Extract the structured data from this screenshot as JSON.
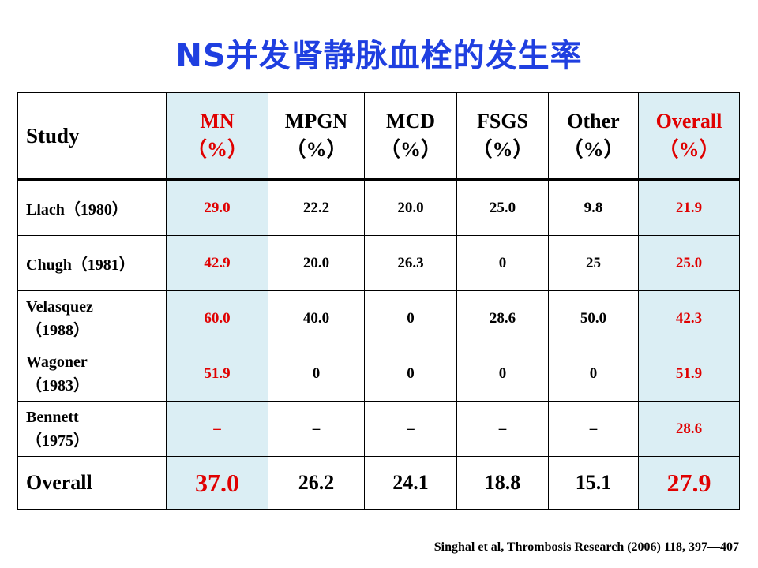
{
  "title": "NS并发肾静脉血栓的发生率",
  "table": {
    "header": {
      "study": "Study",
      "columns": [
        {
          "name": "MN",
          "unit": "（%）"
        },
        {
          "name": "MPGN",
          "unit": "（%）"
        },
        {
          "name": "MCD",
          "unit": "（%）"
        },
        {
          "name": "FSGS",
          "unit": "（%）"
        },
        {
          "name": "Other",
          "unit": "（%）"
        },
        {
          "name": "Overall",
          "unit": "（%）"
        }
      ]
    },
    "rows": [
      {
        "study": "Llach（1980）",
        "study_line2": "",
        "values": [
          "29.0",
          "22.2",
          "20.0",
          "25.0",
          "9.8",
          "21.9"
        ]
      },
      {
        "study": "Chugh（1981）",
        "study_line2": "",
        "values": [
          "42.9",
          "20.0",
          "26.3",
          "0",
          "25",
          "25.0"
        ]
      },
      {
        "study": "Velasquez",
        "study_line2": "（1988）",
        "values": [
          "60.0",
          "40.0",
          "0",
          "28.6",
          "50.0",
          "42.3"
        ]
      },
      {
        "study": "Wagoner",
        "study_line2": "（1983）",
        "values": [
          "51.9",
          "0",
          "0",
          "0",
          "0",
          "51.9"
        ]
      },
      {
        "study": "Bennett",
        "study_line2": "（1975）",
        "values": [
          "–",
          "–",
          "–",
          "–",
          "–",
          "28.6"
        ]
      }
    ],
    "overall": {
      "study": "Overall",
      "values": [
        "37.0",
        "26.2",
        "24.1",
        "18.8",
        "15.1",
        "27.9"
      ]
    }
  },
  "citation": "Singhal et al, Thrombosis Research (2006) 118, 397—407",
  "colors": {
    "title": "#1f3fe0",
    "highlight_text": "#e00000",
    "highlight_bg": "#dbeef4"
  }
}
